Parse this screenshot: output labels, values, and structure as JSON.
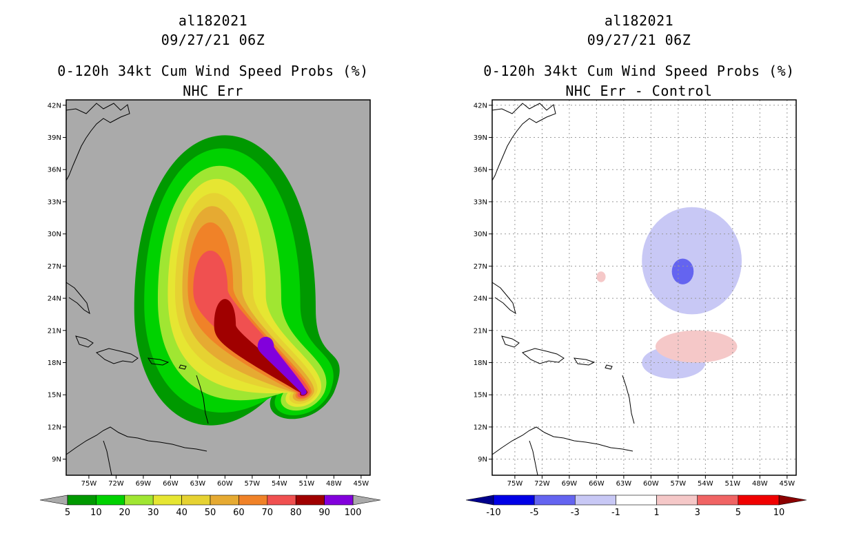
{
  "left": {
    "storm_id": "al182021",
    "datetime": "09/27/21 06Z",
    "title": "0-120h 34kt Cum Wind Speed Probs (%)",
    "subtitle": "NHC Err"
  },
  "right": {
    "storm_id": "al182021",
    "datetime": "09/27/21 06Z",
    "title": "0-120h 34kt Cum Wind Speed Probs (%)",
    "subtitle": "NHC Err - Control"
  },
  "chart_data": [
    {
      "type": "heatmap",
      "title": "0-120h 34kt Cum Wind Speed Probs (%)",
      "subtitle": "NHC Err",
      "x_ticks": [
        "75W",
        "72W",
        "69W",
        "66W",
        "63W",
        "60W",
        "57W",
        "54W",
        "51W",
        "48W",
        "45W"
      ],
      "y_ticks": [
        "42N",
        "39N",
        "36N",
        "33N",
        "30N",
        "27N",
        "24N",
        "21N",
        "18N",
        "15N",
        "12N",
        "9N"
      ],
      "xlim": [
        -77.5,
        -44
      ],
      "ylim": [
        7.5,
        42.5
      ],
      "background": "#aaaaaa",
      "grid": false,
      "legend": {
        "placement": "bottom",
        "labels": [
          "5",
          "10",
          "20",
          "30",
          "40",
          "50",
          "60",
          "70",
          "80",
          "90",
          "100"
        ],
        "colors": [
          "#009900",
          "#00d200",
          "#a0e632",
          "#e6e632",
          "#e6d232",
          "#e6aa32",
          "#f08228",
          "#f05050",
          "#a00000",
          "#8200dc"
        ],
        "below_color": "#aaaaaa",
        "above_color": "#aaaaaa"
      },
      "contour_levels": [
        {
          "min": 5,
          "color": "#009900",
          "center": [
            -60.0,
            23.0
          ],
          "rx": 10.0,
          "ry": 16.0,
          "tail": [
            -51.3,
            15.2
          ]
        },
        {
          "min": 10,
          "color": "#00d200",
          "center": [
            -60.3,
            23.5
          ],
          "rx": 8.6,
          "ry": 14.3,
          "tail": [
            -51.3,
            15.2
          ]
        },
        {
          "min": 20,
          "color": "#a0e632",
          "center": [
            -60.6,
            23.9
          ],
          "rx": 6.8,
          "ry": 12.3,
          "tail": [
            -51.3,
            15.2
          ]
        },
        {
          "min": 30,
          "color": "#e6e632",
          "center": [
            -60.9,
            24.3
          ],
          "rx": 5.4,
          "ry": 10.7,
          "tail": [
            -51.3,
            15.2
          ]
        },
        {
          "min": 40,
          "color": "#e6d232",
          "center": [
            -61.2,
            24.6
          ],
          "rx": 4.3,
          "ry": 9.1,
          "tail": [
            -51.3,
            15.2
          ]
        },
        {
          "min": 50,
          "color": "#e6aa32",
          "center": [
            -61.4,
            24.8
          ],
          "rx": 3.3,
          "ry": 7.7,
          "tail": [
            -51.3,
            15.2
          ]
        },
        {
          "min": 60,
          "color": "#f08228",
          "center": [
            -61.6,
            25.0
          ],
          "rx": 2.5,
          "ry": 6.0,
          "tail": [
            -51.3,
            15.2
          ]
        },
        {
          "min": 70,
          "color": "#f05050",
          "center": [
            -61.6,
            24.8
          ],
          "rx": 1.9,
          "ry": 3.6,
          "tail": [
            -51.3,
            15.2
          ]
        },
        {
          "min": 80,
          "color": "#a00000",
          "center": [
            -60.0,
            21.5
          ],
          "rx": 1.2,
          "ry": 2.4,
          "tail": [
            -51.3,
            15.2
          ]
        },
        {
          "min": 90,
          "color": "#8200dc",
          "center": [
            -55.5,
            19.5
          ],
          "rx": 0.9,
          "ry": 0.9,
          "tail": [
            -51.3,
            15.2
          ]
        }
      ]
    },
    {
      "type": "heatmap",
      "title": "0-120h 34kt Cum Wind Speed Probs (%)",
      "subtitle": "NHC Err - Control",
      "x_ticks": [
        "75W",
        "72W",
        "69W",
        "66W",
        "63W",
        "60W",
        "57W",
        "54W",
        "51W",
        "48W",
        "45W"
      ],
      "y_ticks": [
        "42N",
        "39N",
        "36N",
        "33N",
        "30N",
        "27N",
        "24N",
        "21N",
        "18N",
        "15N",
        "12N",
        "9N"
      ],
      "xlim": [
        -77.5,
        -44
      ],
      "ylim": [
        7.5,
        42.5
      ],
      "background": "#ffffff",
      "grid": true,
      "legend": {
        "placement": "bottom",
        "labels": [
          "-10",
          "-5",
          "-3",
          "-1",
          "1",
          "3",
          "5",
          "10"
        ],
        "colors": [
          "#0000e6",
          "#6464f0",
          "#c8c8f5",
          "#ffffff",
          "#f5c8c8",
          "#f06464",
          "#f00000"
        ],
        "below_color": "#00008c",
        "above_color": "#8c0000"
      },
      "regions": [
        {
          "range": "-3 to -1",
          "color": "#c8c8f5",
          "center": [
            -55.5,
            27.5
          ],
          "rx": 5.5,
          "ry": 5.0
        },
        {
          "range": "-3 to -1",
          "color": "#c8c8f5",
          "center": [
            -57.5,
            18.0
          ],
          "rx": 3.5,
          "ry": 1.5
        },
        {
          "range": "-5 to -3",
          "color": "#6464f0",
          "center": [
            -56.5,
            26.5
          ],
          "rx": 1.2,
          "ry": 1.2
        },
        {
          "range": "1 to 3",
          "color": "#f5c8c8",
          "center": [
            -55.0,
            19.5
          ],
          "rx": 4.5,
          "ry": 1.5
        },
        {
          "range": "1 to 3",
          "color": "#f5c8c8",
          "center": [
            -65.5,
            26.0
          ],
          "rx": 0.5,
          "ry": 0.5
        }
      ]
    }
  ]
}
